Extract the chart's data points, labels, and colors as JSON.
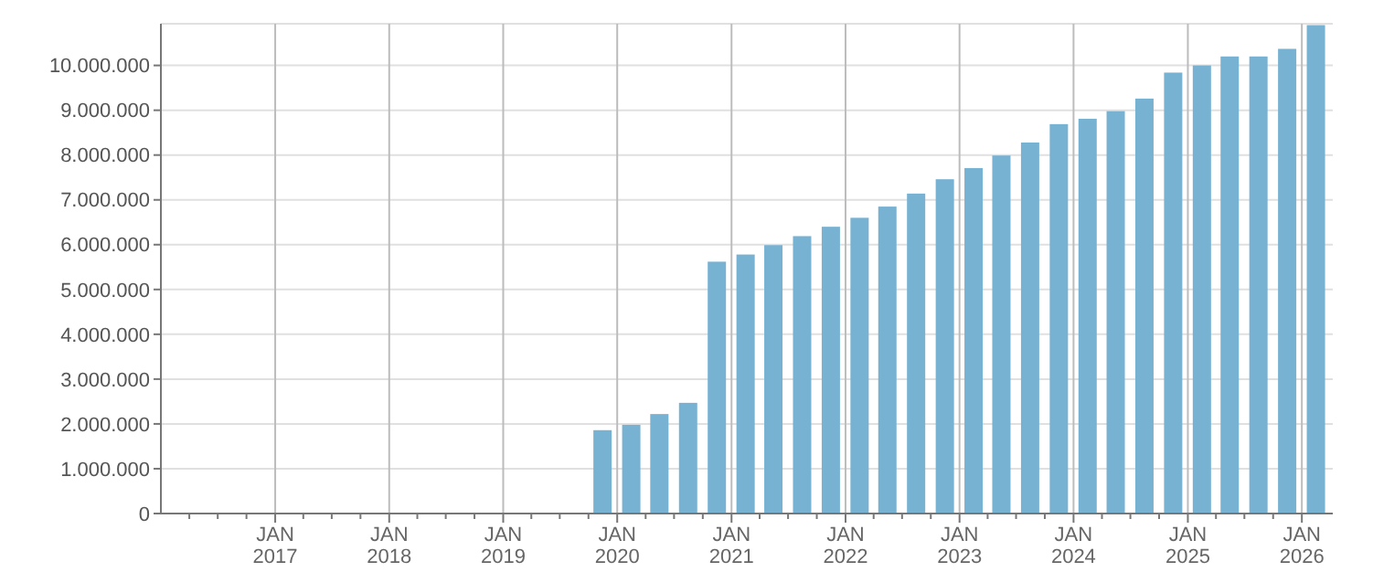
{
  "chart_data": {
    "type": "bar",
    "color": "#78b2d3",
    "grid": true,
    "x": [
      "2019-11-15",
      "2020-02-15",
      "2020-05-15",
      "2020-08-15",
      "2020-11-15",
      "2021-02-15",
      "2021-05-15",
      "2021-08-15",
      "2021-11-15",
      "2022-02-15",
      "2022-05-15",
      "2022-08-15",
      "2022-11-15",
      "2023-02-15",
      "2023-05-15",
      "2023-08-15",
      "2023-11-15",
      "2024-02-15",
      "2024-05-15",
      "2024-08-15",
      "2024-11-15",
      "2025-02-15",
      "2025-05-15",
      "2025-08-15",
      "2025-11-15",
      "2026-02-15"
    ],
    "values": [
      1860000,
      1980000,
      2220000,
      2470000,
      5620000,
      5780000,
      5990000,
      6190000,
      6400000,
      6600000,
      6850000,
      7140000,
      7460000,
      7710000,
      7990000,
      8280000,
      8690000,
      8810000,
      8980000,
      9260000,
      9840000,
      10000000,
      10200000,
      10200000,
      10370000,
      10900000
    ],
    "xlim": [
      "2016-01-01",
      "2026-04-10"
    ],
    "xticks": [
      {
        "value": "2016-04-01",
        "label": null
      },
      {
        "value": "2016-07-01",
        "label": null
      },
      {
        "value": "2016-10-01",
        "label": null
      },
      {
        "value": "2017-01-01",
        "label": "JAN 2017"
      },
      {
        "value": "2017-04-01",
        "label": null
      },
      {
        "value": "2017-07-01",
        "label": null
      },
      {
        "value": "2017-10-01",
        "label": null
      },
      {
        "value": "2018-01-01",
        "label": "JAN 2018"
      },
      {
        "value": "2018-04-01",
        "label": null
      },
      {
        "value": "2018-07-01",
        "label": null
      },
      {
        "value": "2018-10-01",
        "label": null
      },
      {
        "value": "2019-01-01",
        "label": "JAN 2019"
      },
      {
        "value": "2019-04-01",
        "label": null
      },
      {
        "value": "2019-07-01",
        "label": null
      },
      {
        "value": "2019-10-01",
        "label": null
      },
      {
        "value": "2020-01-01",
        "label": "JAN 2020"
      },
      {
        "value": "2020-04-01",
        "label": null
      },
      {
        "value": "2020-07-01",
        "label": null
      },
      {
        "value": "2020-10-01",
        "label": null
      },
      {
        "value": "2021-01-01",
        "label": "JAN 2021"
      },
      {
        "value": "2021-04-01",
        "label": null
      },
      {
        "value": "2021-07-01",
        "label": null
      },
      {
        "value": "2021-10-01",
        "label": null
      },
      {
        "value": "2022-01-01",
        "label": "JAN 2022"
      },
      {
        "value": "2022-04-01",
        "label": null
      },
      {
        "value": "2022-07-01",
        "label": null
      },
      {
        "value": "2022-10-01",
        "label": null
      },
      {
        "value": "2023-01-01",
        "label": "JAN 2023"
      },
      {
        "value": "2023-04-01",
        "label": null
      },
      {
        "value": "2023-07-01",
        "label": null
      },
      {
        "value": "2023-10-01",
        "label": null
      },
      {
        "value": "2024-01-01",
        "label": "JAN 2024"
      },
      {
        "value": "2024-04-01",
        "label": null
      },
      {
        "value": "2024-07-01",
        "label": null
      },
      {
        "value": "2024-10-01",
        "label": null
      },
      {
        "value": "2025-01-01",
        "label": "JAN 2025"
      },
      {
        "value": "2025-04-01",
        "label": null
      },
      {
        "value": "2025-07-01",
        "label": null
      },
      {
        "value": "2025-10-01",
        "label": null
      },
      {
        "value": "2026-01-01",
        "label": "JAN 2026"
      }
    ],
    "ylim": [
      0,
      10930000
    ],
    "yticks": [
      {
        "value": 0,
        "label": "0"
      },
      {
        "value": 1000000,
        "label": "1.000.000"
      },
      {
        "value": 2000000,
        "label": "2.000.000"
      },
      {
        "value": 3000000,
        "label": "3.000.000"
      },
      {
        "value": 4000000,
        "label": "4.000.000"
      },
      {
        "value": 5000000,
        "label": "5.000.000"
      },
      {
        "value": 6000000,
        "label": "6.000.000"
      },
      {
        "value": 7000000,
        "label": "7.000.000"
      },
      {
        "value": 8000000,
        "label": "8.000.000"
      },
      {
        "value": 9000000,
        "label": "9.000.000"
      },
      {
        "value": 10000000,
        "label": "10.000.000"
      }
    ]
  }
}
